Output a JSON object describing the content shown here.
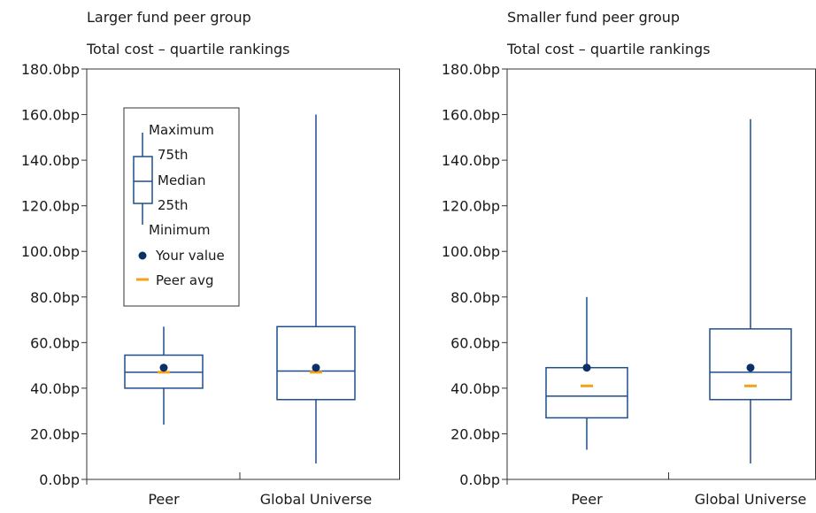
{
  "colors": {
    "box": "#1f4e8c",
    "your_value": "#0b2f66",
    "peer_avg": "#f5a11a",
    "axis": "#333333",
    "text": "#1a1a1a"
  },
  "legend": {
    "maximum": "Maximum",
    "q75": "75th",
    "median": "Median",
    "q25": "25th",
    "minimum": "Minimum",
    "your_value": "Your value",
    "peer_avg": "Peer avg"
  },
  "chart_data": [
    {
      "type": "box",
      "title": "Larger fund peer group",
      "subtitle": "Total cost – quartile rankings",
      "ylim": [
        0,
        180
      ],
      "yticks": [
        "0.0bp",
        "20.0bp",
        "40.0bp",
        "60.0bp",
        "80.0bp",
        "100.0bp",
        "120.0bp",
        "140.0bp",
        "160.0bp",
        "180.0bp"
      ],
      "categories": [
        "Peer",
        "Global Universe"
      ],
      "boxes": [
        {
          "category": "Peer",
          "min": 24,
          "q25": 40,
          "median": 47,
          "q75": 54.5,
          "max": 67,
          "your_value": 49,
          "peer_avg": 47
        },
        {
          "category": "Global Universe",
          "min": 7,
          "q25": 35,
          "median": 47.5,
          "q75": 67,
          "max": 160,
          "your_value": 49,
          "peer_avg": 47
        }
      ],
      "legend": "top-left"
    },
    {
      "type": "box",
      "title": "Smaller fund peer group",
      "subtitle": "Total cost – quartile rankings",
      "ylim": [
        0,
        180
      ],
      "yticks": [
        "0.0bp",
        "20.0bp",
        "40.0bp",
        "60.0bp",
        "80.0bp",
        "100.0bp",
        "120.0bp",
        "140.0bp",
        "160.0bp",
        "180.0bp"
      ],
      "categories": [
        "Peer",
        "Global Universe"
      ],
      "boxes": [
        {
          "category": "Peer",
          "min": 13,
          "q25": 27,
          "median": 36.5,
          "q75": 49,
          "max": 80,
          "your_value": 49,
          "peer_avg": 41
        },
        {
          "category": "Global Universe",
          "min": 7,
          "q25": 35,
          "median": 47,
          "q75": 66,
          "max": 158,
          "your_value": 49,
          "peer_avg": 41
        }
      ]
    }
  ]
}
